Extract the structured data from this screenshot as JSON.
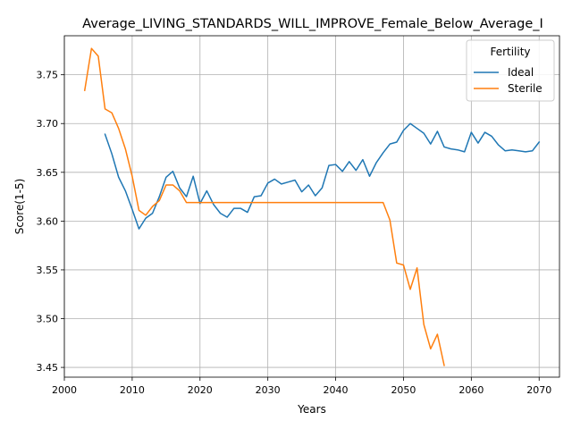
{
  "chart_data": {
    "type": "line",
    "title": "Average_LIVING_STANDARDS_WILL_IMPROVE_Female_Below_Average_I",
    "xlabel": "Years",
    "ylabel": "Score(1-5)",
    "xlim": [
      2000,
      2073
    ],
    "ylim": [
      3.44,
      3.79
    ],
    "xticks": [
      2000,
      2010,
      2020,
      2030,
      2040,
      2050,
      2060,
      2070
    ],
    "yticks": [
      3.45,
      3.5,
      3.55,
      3.6,
      3.65,
      3.7,
      3.75
    ],
    "xtick_labels": [
      "2000",
      "2010",
      "2020",
      "2030",
      "2040",
      "2050",
      "2060",
      "2070"
    ],
    "ytick_labels": [
      "3.45",
      "3.50",
      "3.55",
      "3.60",
      "3.65",
      "3.70",
      "3.75"
    ],
    "grid": true,
    "legend": {
      "title": "Fertility",
      "placement": "top-right"
    },
    "series": [
      {
        "name": "Ideal",
        "color": "#1f77b4",
        "x": [
          2006,
          2007,
          2008,
          2009,
          2010,
          2011,
          2012,
          2013,
          2014,
          2015,
          2016,
          2017,
          2018,
          2019,
          2020,
          2021,
          2022,
          2023,
          2024,
          2025,
          2026,
          2027,
          2028,
          2029,
          2030,
          2031,
          2032,
          2033,
          2034,
          2035,
          2036,
          2037,
          2038,
          2039,
          2040,
          2041,
          2042,
          2043,
          2044,
          2045,
          2046,
          2047,
          2048,
          2049,
          2050,
          2051,
          2052,
          2053,
          2054,
          2055,
          2056,
          2057,
          2058,
          2059,
          2060,
          2061,
          2062,
          2063,
          2064,
          2065,
          2066,
          2067,
          2068,
          2069,
          2070
        ],
        "y": [
          3.689,
          3.669,
          3.645,
          3.631,
          3.612,
          3.592,
          3.603,
          3.608,
          3.625,
          3.645,
          3.651,
          3.634,
          3.625,
          3.646,
          3.618,
          3.631,
          3.617,
          3.608,
          3.604,
          3.613,
          3.613,
          3.609,
          3.625,
          3.626,
          3.639,
          3.643,
          3.638,
          3.64,
          3.642,
          3.63,
          3.637,
          3.626,
          3.634,
          3.657,
          3.658,
          3.651,
          3.661,
          3.652,
          3.663,
          3.646,
          3.66,
          3.67,
          3.679,
          3.681,
          3.693,
          3.7,
          3.695,
          3.69,
          3.679,
          3.692,
          3.676,
          3.674,
          3.673,
          3.671,
          3.691,
          3.68,
          3.691,
          3.687,
          3.678,
          3.672,
          3.673,
          3.672,
          3.671,
          3.672,
          3.681
        ]
      },
      {
        "name": "Sterile",
        "color": "#ff7f0e",
        "x": [
          2003,
          2004,
          2005,
          2006,
          2007,
          2008,
          2009,
          2010,
          2011,
          2012,
          2013,
          2014,
          2015,
          2016,
          2017,
          2018,
          2019,
          2020,
          2021,
          2022,
          2023,
          2024,
          2025,
          2026,
          2027,
          2028,
          2029,
          2030,
          2031,
          2032,
          2033,
          2034,
          2035,
          2036,
          2037,
          2038,
          2039,
          2040,
          2041,
          2042,
          2043,
          2044,
          2045,
          2046,
          2047,
          2048,
          2049,
          2050,
          2051,
          2052,
          2053,
          2054,
          2055,
          2056
        ],
        "y": [
          3.734,
          3.777,
          3.769,
          3.715,
          3.711,
          3.695,
          3.674,
          3.646,
          3.611,
          3.606,
          3.615,
          3.621,
          3.637,
          3.637,
          3.631,
          3.619,
          3.619,
          3.619,
          3.619,
          3.619,
          3.619,
          3.619,
          3.619,
          3.619,
          3.619,
          3.619,
          3.619,
          3.619,
          3.619,
          3.619,
          3.619,
          3.619,
          3.619,
          3.619,
          3.619,
          3.619,
          3.619,
          3.619,
          3.619,
          3.619,
          3.619,
          3.619,
          3.619,
          3.619,
          3.619,
          3.601,
          3.557,
          3.555,
          3.53,
          3.552,
          3.494,
          3.469,
          3.484,
          3.452
        ]
      }
    ]
  }
}
